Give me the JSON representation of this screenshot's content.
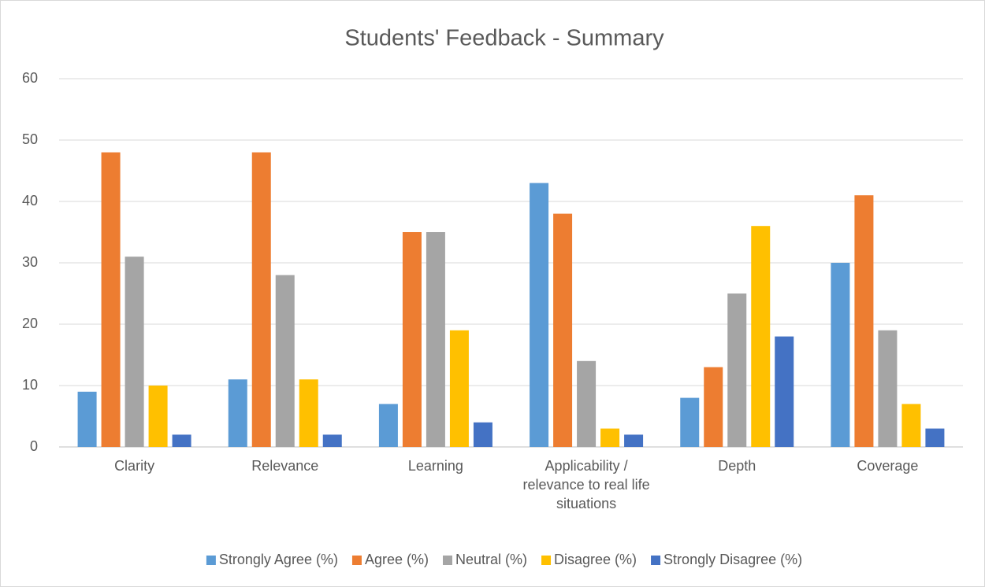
{
  "chart_data": {
    "type": "bar",
    "title": "Students' Feedback - Summary",
    "categories": [
      "Clarity",
      "Relevance",
      "Learning",
      "Applicability / relevance to real life situations",
      "Depth",
      "Coverage"
    ],
    "series": [
      {
        "name": "Strongly Agree (%)",
        "color": "#5b9bd5",
        "values": [
          9,
          11,
          7,
          43,
          8,
          30
        ]
      },
      {
        "name": "Agree (%)",
        "color": "#ed7d31",
        "values": [
          48,
          48,
          35,
          38,
          13,
          41
        ]
      },
      {
        "name": "Neutral (%)",
        "color": "#a5a5a5",
        "values": [
          31,
          28,
          35,
          14,
          25,
          19
        ]
      },
      {
        "name": "Disagree (%)",
        "color": "#ffc000",
        "values": [
          10,
          11,
          19,
          3,
          36,
          7
        ]
      },
      {
        "name": "Strongly Disagree (%)",
        "color": "#4472c4",
        "values": [
          2,
          2,
          4,
          2,
          18,
          3
        ]
      }
    ],
    "ylim": [
      0,
      60
    ],
    "yticks": [
      0,
      10,
      20,
      30,
      40,
      50,
      60
    ],
    "grid": true,
    "legend": "bottom"
  }
}
